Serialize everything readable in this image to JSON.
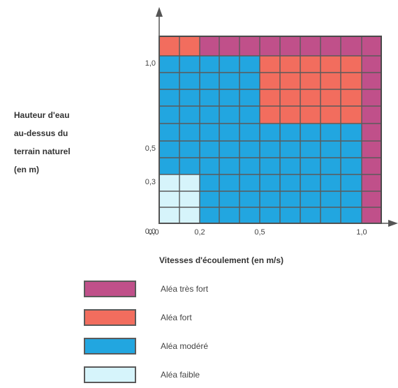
{
  "chart_data": {
    "type": "heatmap",
    "title": "",
    "xlabel": "Vitesses d'écoulement (en m/s)",
    "ylabel_lines": [
      "Hauteur d'eau",
      "au-dessus du",
      "terrain naturel",
      "(en m)"
    ],
    "x_ticks": [
      "0,0",
      "0,2",
      "0,5",
      "1,0"
    ],
    "y_ticks": [
      "0,0",
      "0,3",
      "0,5",
      "1,0"
    ],
    "colors": {
      "tres_fort": "#c0508a",
      "fort": "#f26d5e",
      "modere": "#22a6e0",
      "faible": "#d6f4fb"
    },
    "zones": [
      {
        "category": "faible",
        "x_range": [
          0,
          0.2
        ],
        "y_range": [
          0,
          0.3
        ]
      },
      {
        "category": "modere",
        "x_range": [
          0.2,
          1.0
        ],
        "y_range": [
          0,
          0.3
        ]
      },
      {
        "category": "modere",
        "x_range": [
          0,
          1.0
        ],
        "y_range": [
          0.3,
          0.5
        ]
      },
      {
        "category": "modere",
        "x_range": [
          0,
          0.5
        ],
        "y_range": [
          0.5,
          1.0
        ]
      },
      {
        "category": "modere",
        "x_range": [
          0.5,
          1.0
        ],
        "y_range": [
          0.5,
          0.6
        ]
      },
      {
        "category": "fort",
        "x_range": [
          0.5,
          1.0
        ],
        "y_range": [
          0.6,
          1.0
        ]
      },
      {
        "category": "fort",
        "x_range": [
          0,
          0.2
        ],
        "y_range": [
          1.0,
          1.1
        ]
      },
      {
        "category": "tres_fort",
        "x_range": [
          0.2,
          1.2
        ],
        "y_range": [
          1.0,
          1.1
        ]
      },
      {
        "category": "tres_fort",
        "x_range": [
          1.0,
          1.2
        ],
        "y_range": [
          0,
          1.0
        ]
      }
    ],
    "legend": [
      {
        "category": "tres_fort",
        "label": "Aléa très fort"
      },
      {
        "category": "fort",
        "label": "Aléa fort"
      },
      {
        "category": "modere",
        "label": "Aléa modéré"
      },
      {
        "category": "faible",
        "label": "Aléa faible"
      }
    ]
  }
}
